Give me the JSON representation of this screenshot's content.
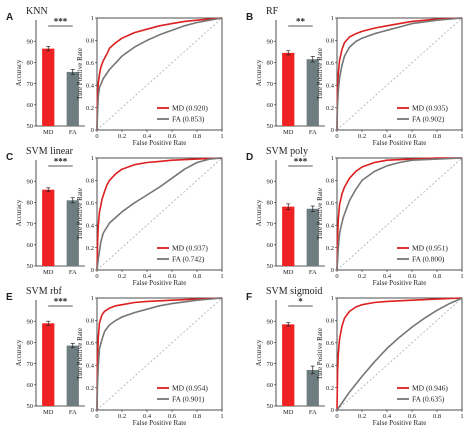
{
  "chart_data": [
    {
      "letter": "A",
      "title": "KNN",
      "sig": "***",
      "bars": {
        "type": "bar",
        "ylabel": "Accuracy",
        "ylim": [
          50,
          100
        ],
        "yticks": [
          50,
          60,
          70,
          80,
          90
        ],
        "categories": [
          "MD",
          "FA"
        ],
        "values": [
          86.5,
          75.5
        ],
        "errors": [
          1.0,
          1.2
        ],
        "colors": [
          "#ee2222",
          "#6e7d80"
        ]
      },
      "roc": {
        "type": "line",
        "xlabel": "False Positive Rate",
        "ylabel": "Ture Positive Rate",
        "xlim": [
          0,
          1
        ],
        "ylim": [
          0,
          1
        ],
        "xticks": [
          "0",
          "0.2",
          "0.4",
          "0.6",
          "0.8",
          "1"
        ],
        "yticks": [
          "0",
          "0.2",
          "0.4",
          "0.6",
          "0.8",
          "1"
        ],
        "series": [
          {
            "name": "MD (0.920)",
            "color": "#dd1f1f",
            "x": [
              0,
              0.003,
              0.01,
              0.02,
              0.03,
              0.05,
              0.08,
              0.1,
              0.15,
              0.2,
              0.3,
              0.4,
              0.5,
              0.6,
              0.7,
              0.8,
              0.9,
              1.0
            ],
            "y": [
              0,
              0.3,
              0.42,
              0.5,
              0.56,
              0.62,
              0.68,
              0.73,
              0.78,
              0.82,
              0.87,
              0.9,
              0.93,
              0.95,
              0.97,
              0.98,
              0.99,
              1.0
            ]
          },
          {
            "name": "FA (0.853)",
            "color": "#767676",
            "x": [
              0,
              0.003,
              0.01,
              0.02,
              0.05,
              0.1,
              0.15,
              0.2,
              0.3,
              0.4,
              0.5,
              0.6,
              0.7,
              0.8,
              0.9,
              1.0
            ],
            "y": [
              0,
              0.12,
              0.3,
              0.38,
              0.46,
              0.54,
              0.6,
              0.66,
              0.74,
              0.8,
              0.85,
              0.89,
              0.93,
              0.96,
              0.98,
              1.0
            ]
          }
        ]
      }
    },
    {
      "letter": "B",
      "title": "RF",
      "sig": "**",
      "bars": {
        "type": "bar",
        "ylabel": "Accuracy",
        "ylim": [
          50,
          100
        ],
        "yticks": [
          50,
          60,
          70,
          80,
          90
        ],
        "categories": [
          "MD",
          "FA"
        ],
        "values": [
          84.5,
          81.5
        ],
        "errors": [
          1.0,
          1.3
        ],
        "colors": [
          "#ee2222",
          "#6e7d80"
        ]
      },
      "roc": {
        "type": "line",
        "xlabel": "False Positive Rate",
        "ylabel": "Ture Positive Rate",
        "xlim": [
          0,
          1
        ],
        "ylim": [
          0,
          1
        ],
        "xticks": [
          "0",
          "0.2",
          "0.4",
          "0.6",
          "0.8",
          "1"
        ],
        "yticks": [
          "0",
          "0.2",
          "0.4",
          "0.6",
          "0.8",
          "1"
        ],
        "series": [
          {
            "name": "MD (0.935)",
            "color": "#dd1f1f",
            "x": [
              0,
              0.003,
              0.01,
              0.02,
              0.04,
              0.06,
              0.1,
              0.15,
              0.2,
              0.3,
              0.4,
              0.5,
              0.6,
              0.8,
              1.0
            ],
            "y": [
              0,
              0.35,
              0.5,
              0.62,
              0.72,
              0.78,
              0.83,
              0.86,
              0.88,
              0.91,
              0.93,
              0.95,
              0.97,
              0.99,
              1.0
            ]
          },
          {
            "name": "FA (0.902)",
            "color": "#767676",
            "x": [
              0,
              0.003,
              0.01,
              0.02,
              0.04,
              0.06,
              0.1,
              0.15,
              0.2,
              0.3,
              0.4,
              0.5,
              0.6,
              0.8,
              1.0
            ],
            "y": [
              0,
              0.2,
              0.35,
              0.46,
              0.58,
              0.66,
              0.74,
              0.79,
              0.82,
              0.86,
              0.89,
              0.92,
              0.95,
              0.98,
              1.0
            ]
          }
        ]
      }
    },
    {
      "letter": "C",
      "title": "SVM linear",
      "sig": "***",
      "bars": {
        "type": "bar",
        "ylabel": "Accuracy",
        "ylim": [
          50,
          100
        ],
        "yticks": [
          50,
          60,
          70,
          80,
          90
        ],
        "categories": [
          "MD",
          "FA"
        ],
        "values": [
          86.0,
          81.0
        ],
        "errors": [
          0.9,
          1.2
        ],
        "colors": [
          "#ee2222",
          "#6e7d80"
        ]
      },
      "roc": {
        "type": "line",
        "xlabel": "False Positive Rate",
        "ylabel": "Ture Positive Rate",
        "xlim": [
          0,
          1
        ],
        "ylim": [
          0,
          1
        ],
        "xticks": [
          "0",
          "0.2",
          "0.4",
          "0.6",
          "0.8",
          "1"
        ],
        "yticks": [
          "0",
          "0.2",
          "0.4",
          "0.6",
          "0.8",
          "1"
        ],
        "series": [
          {
            "name": "MD (0.937)",
            "color": "#dd1f1f",
            "x": [
              0,
              0.005,
              0.01,
              0.02,
              0.04,
              0.06,
              0.08,
              0.1,
              0.15,
              0.2,
              0.3,
              0.4,
              0.5,
              0.6,
              0.8,
              1.0
            ],
            "y": [
              0,
              0.25,
              0.4,
              0.52,
              0.63,
              0.7,
              0.76,
              0.8,
              0.86,
              0.9,
              0.94,
              0.96,
              0.97,
              0.98,
              0.99,
              1.0
            ]
          },
          {
            "name": "FA (0.742)",
            "color": "#767676",
            "x": [
              0,
              0.01,
              0.03,
              0.05,
              0.1,
              0.15,
              0.2,
              0.3,
              0.4,
              0.5,
              0.6,
              0.7,
              0.8,
              0.9,
              1.0
            ],
            "y": [
              0,
              0.1,
              0.25,
              0.33,
              0.42,
              0.47,
              0.52,
              0.6,
              0.67,
              0.74,
              0.82,
              0.9,
              0.96,
              0.99,
              1.0
            ]
          }
        ]
      }
    },
    {
      "letter": "D",
      "title": "SVM poly",
      "sig": "***",
      "bars": {
        "type": "bar",
        "ylabel": "Accuracy",
        "ylim": [
          50,
          100
        ],
        "yticks": [
          50,
          60,
          70,
          80,
          90
        ],
        "categories": [
          "MD",
          "FA"
        ],
        "values": [
          78.0,
          77.0
        ],
        "errors": [
          1.3,
          1.3
        ],
        "colors": [
          "#ee2222",
          "#6e7d80"
        ]
      },
      "roc": {
        "type": "line",
        "xlabel": "False Positive Rate",
        "ylabel": "Ture Positive Rate",
        "xlim": [
          0,
          1
        ],
        "ylim": [
          0,
          1
        ],
        "xticks": [
          "0",
          "0.2",
          "0.4",
          "0.6",
          "0.8",
          "1"
        ],
        "yticks": [
          "0",
          "0.2",
          "0.4",
          "0.6",
          "0.8",
          "1"
        ],
        "series": [
          {
            "name": "MD (0.951)",
            "color": "#dd1f1f",
            "x": [
              0,
              0.005,
              0.01,
              0.02,
              0.04,
              0.06,
              0.08,
              0.1,
              0.15,
              0.2,
              0.3,
              0.4,
              0.6,
              0.8,
              1.0
            ],
            "y": [
              0,
              0.3,
              0.45,
              0.58,
              0.68,
              0.74,
              0.78,
              0.82,
              0.88,
              0.92,
              0.96,
              0.98,
              0.99,
              1.0,
              1.0
            ]
          },
          {
            "name": "FA (0.800)",
            "color": "#767676",
            "x": [
              0,
              0.01,
              0.02,
              0.03,
              0.05,
              0.08,
              0.1,
              0.15,
              0.2,
              0.3,
              0.4,
              0.5,
              0.6,
              0.8,
              1.0
            ],
            "y": [
              0,
              0.2,
              0.32,
              0.38,
              0.47,
              0.56,
              0.62,
              0.72,
              0.8,
              0.88,
              0.93,
              0.96,
              0.98,
              0.99,
              1.0
            ]
          }
        ]
      }
    },
    {
      "letter": "E",
      "title": "SVM rbf",
      "sig": "***",
      "bars": {
        "type": "bar",
        "ylabel": "Accuracy",
        "ylim": [
          50,
          100
        ],
        "yticks": [
          50,
          60,
          70,
          80,
          90
        ],
        "categories": [
          "MD",
          "FA"
        ],
        "values": [
          89.0,
          78.5
        ],
        "errors": [
          1.0,
          1.0
        ],
        "colors": [
          "#ee2222",
          "#6e7d80"
        ]
      },
      "roc": {
        "type": "line",
        "xlabel": "False Positive Rate",
        "ylabel": "Ture Positive Rate",
        "xlim": [
          0,
          1
        ],
        "ylim": [
          0,
          1
        ],
        "xticks": [
          "0",
          "0.2",
          "0.4",
          "0.6",
          "0.8",
          "1"
        ],
        "yticks": [
          "0",
          "0.2",
          "0.4",
          "0.6",
          "0.8",
          "1"
        ],
        "series": [
          {
            "name": "MD (0.954)",
            "color": "#dd1f1f",
            "x": [
              0,
              0.003,
              0.01,
              0.02,
              0.04,
              0.06,
              0.1,
              0.15,
              0.2,
              0.3,
              0.4,
              0.6,
              0.8,
              1.0
            ],
            "y": [
              0,
              0.45,
              0.65,
              0.78,
              0.85,
              0.88,
              0.91,
              0.93,
              0.94,
              0.96,
              0.97,
              0.98,
              0.99,
              1.0
            ]
          },
          {
            "name": "FA (0.901)",
            "color": "#767676",
            "x": [
              0,
              0.003,
              0.01,
              0.02,
              0.04,
              0.06,
              0.1,
              0.15,
              0.2,
              0.3,
              0.4,
              0.5,
              0.6,
              0.8,
              1.0
            ],
            "y": [
              0,
              0.2,
              0.4,
              0.55,
              0.63,
              0.7,
              0.76,
              0.8,
              0.83,
              0.87,
              0.9,
              0.93,
              0.95,
              0.98,
              1.0
            ]
          }
        ]
      }
    },
    {
      "letter": "F",
      "title": "SVM sigmoid",
      "sig": "*",
      "bars": {
        "type": "bar",
        "ylabel": "Accuracy",
        "ylim": [
          50,
          100
        ],
        "yticks": [
          50,
          60,
          70,
          80,
          90
        ],
        "categories": [
          "MD",
          "FA"
        ],
        "values": [
          88.5,
          67.0
        ],
        "errors": [
          0.8,
          1.8
        ],
        "colors": [
          "#ee2222",
          "#6e7d80"
        ]
      },
      "roc": {
        "type": "line",
        "xlabel": "False Positive Rate",
        "ylabel": "Ture Positive Rate",
        "xlim": [
          0,
          1
        ],
        "ylim": [
          0,
          1
        ],
        "xticks": [
          "0",
          "0.2",
          "0.4",
          "0.6",
          "0.8",
          "1"
        ],
        "yticks": [
          "0",
          "0.2",
          "0.4",
          "0.6",
          "0.8",
          "1"
        ],
        "series": [
          {
            "name": "MD (0.946)",
            "color": "#dd1f1f",
            "x": [
              0,
              0.005,
              0.01,
              0.02,
              0.04,
              0.06,
              0.1,
              0.15,
              0.2,
              0.3,
              0.4,
              0.6,
              0.8,
              1.0
            ],
            "y": [
              0,
              0.35,
              0.5,
              0.63,
              0.75,
              0.82,
              0.88,
              0.92,
              0.94,
              0.96,
              0.97,
              0.98,
              0.99,
              1.0
            ]
          },
          {
            "name": "FA (0.635)",
            "color": "#767676",
            "x": [
              0,
              0.05,
              0.1,
              0.2,
              0.3,
              0.4,
              0.5,
              0.6,
              0.7,
              0.8,
              0.9,
              1.0
            ],
            "y": [
              0,
              0.08,
              0.16,
              0.3,
              0.43,
              0.55,
              0.65,
              0.74,
              0.82,
              0.89,
              0.95,
              1.0
            ]
          }
        ]
      }
    }
  ]
}
